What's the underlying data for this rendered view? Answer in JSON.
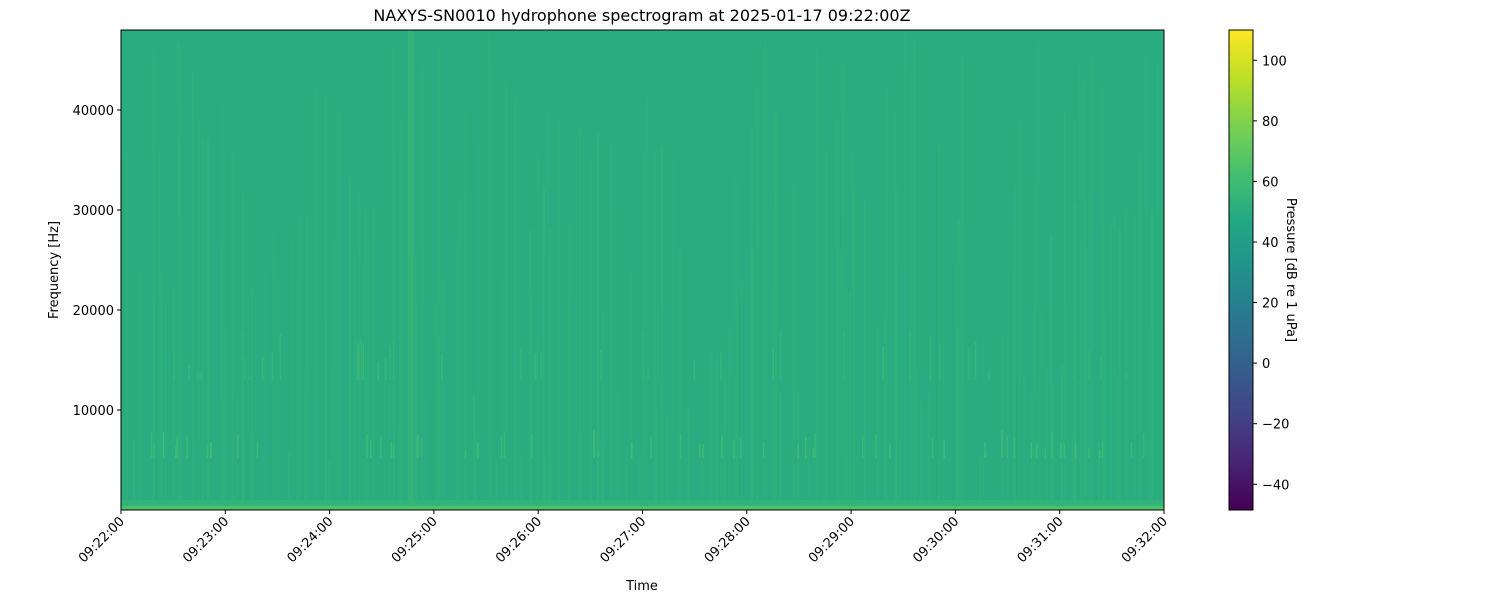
{
  "chart_data": {
    "type": "heatmap",
    "title": "NAXYS-SN0010 hydrophone spectrogram at 2025-01-17 09:22:00Z",
    "xlabel": "Time",
    "ylabel": "Frequency [Hz]",
    "x_ticks": [
      "09:22:00",
      "09:23:00",
      "09:24:00",
      "09:25:00",
      "09:26:00",
      "09:27:00",
      "09:28:00",
      "09:29:00",
      "09:30:00",
      "09:31:00",
      "09:32:00"
    ],
    "xlim": [
      "09:22:00",
      "09:32:00"
    ],
    "y_ticks": [
      10000,
      20000,
      30000,
      40000
    ],
    "ylim": [
      0,
      48000
    ],
    "colormap": "viridis",
    "colorbar": {
      "label": "Pressure [dB re 1 uPa]",
      "ticks": [
        -40,
        -20,
        0,
        20,
        40,
        60,
        80,
        100
      ],
      "range": [
        -48.5,
        110
      ]
    },
    "approx_levels_db": {
      "background": 50,
      "band_5000_8000_hz_transients": 60,
      "below_500_hz": 65,
      "broadband_transient_near_09_24_45": 56
    },
    "grid": false
  }
}
